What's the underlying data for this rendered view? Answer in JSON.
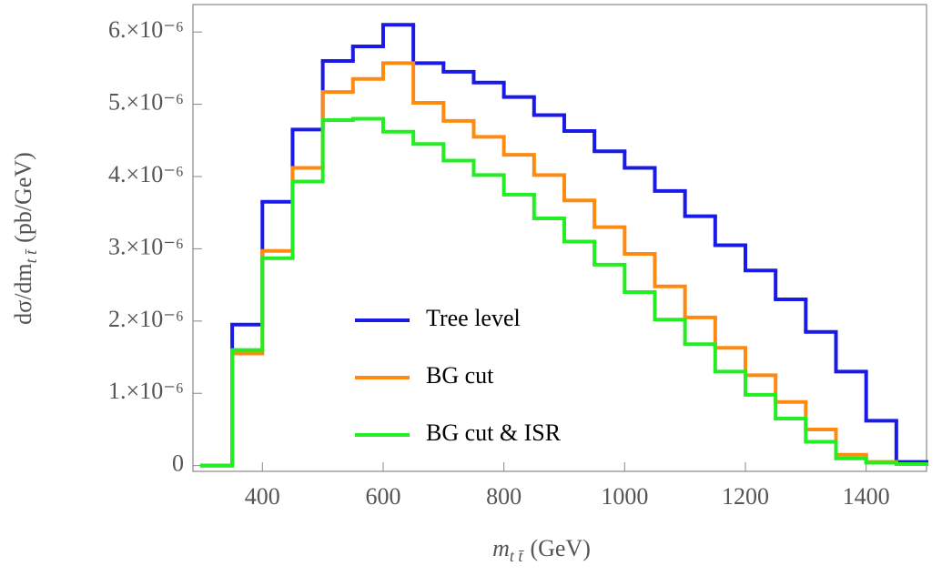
{
  "chart_data": {
    "type": "step-histogram",
    "ylabel": "dσ/dm",
    "ylabel_sub": "t t̄",
    "ylabel_unit": "(pb/GeV)",
    "xlabel": "m",
    "xlabel_sub": "t t̄",
    "xlabel_unit": "(GeV)",
    "bins": [
      300,
      350,
      400,
      450,
      500,
      550,
      600,
      650,
      700,
      750,
      800,
      850,
      900,
      950,
      1000,
      1050,
      1100,
      1150,
      1200,
      1250,
      1300,
      1350,
      1400,
      1450,
      1500
    ],
    "series": [
      {
        "name": "Tree level",
        "color": "#1a1ae8",
        "values": [
          0,
          1.95e-06,
          3.65e-06,
          4.65e-06,
          5.6e-06,
          5.8e-06,
          6.1e-06,
          5.57e-06,
          5.45e-06,
          5.3e-06,
          5.1e-06,
          4.85e-06,
          4.63e-06,
          4.35e-06,
          4.12e-06,
          3.8e-06,
          3.45e-06,
          3.05e-06,
          2.7e-06,
          2.3e-06,
          1.85e-06,
          1.3e-06,
          6.2e-07,
          5e-08
        ]
      },
      {
        "name": "BG cut",
        "color": "#ff8a10",
        "values": [
          0,
          1.55e-06,
          2.97e-06,
          4.12e-06,
          5.17e-06,
          5.35e-06,
          5.57e-06,
          5.02e-06,
          4.77e-06,
          4.55e-06,
          4.3e-06,
          4.02e-06,
          3.67e-06,
          3.3e-06,
          2.93e-06,
          2.48e-06,
          2.05e-06,
          1.63e-06,
          1.25e-06,
          8.8e-07,
          5e-07,
          1.5e-07,
          5e-08,
          2e-08
        ]
      },
      {
        "name": "BG cut & ISR",
        "color": "#22ee22",
        "values": [
          0,
          1.6e-06,
          2.87e-06,
          3.93e-06,
          4.78e-06,
          4.8e-06,
          4.62e-06,
          4.45e-06,
          4.22e-06,
          4.02e-06,
          3.75e-06,
          3.42e-06,
          3.1e-06,
          2.78e-06,
          2.4e-06,
          2.02e-06,
          1.68e-06,
          1.3e-06,
          9.8e-07,
          6.5e-07,
          3.3e-07,
          1e-07,
          4e-08,
          2e-08
        ]
      }
    ],
    "xlim": [
      285,
      1500
    ],
    "ylim": [
      -8e-08,
      6.38e-06
    ],
    "xticks": [
      400,
      600,
      800,
      1000,
      1200,
      1400
    ],
    "yticks": [
      0,
      {
        "value": 1e-06,
        "label": "1.×10⁻⁶"
      },
      {
        "value": 2e-06,
        "label": "2.×10⁻⁶"
      },
      {
        "value": 3e-06,
        "label": "3.×10⁻⁶"
      },
      {
        "value": 4e-06,
        "label": "4.×10⁻⁶"
      },
      {
        "value": 5e-06,
        "label": "5.×10⁻⁶"
      },
      {
        "value": 6e-06,
        "label": "6.×10⁻⁶"
      }
    ],
    "legend": "lower center",
    "grid": false
  }
}
